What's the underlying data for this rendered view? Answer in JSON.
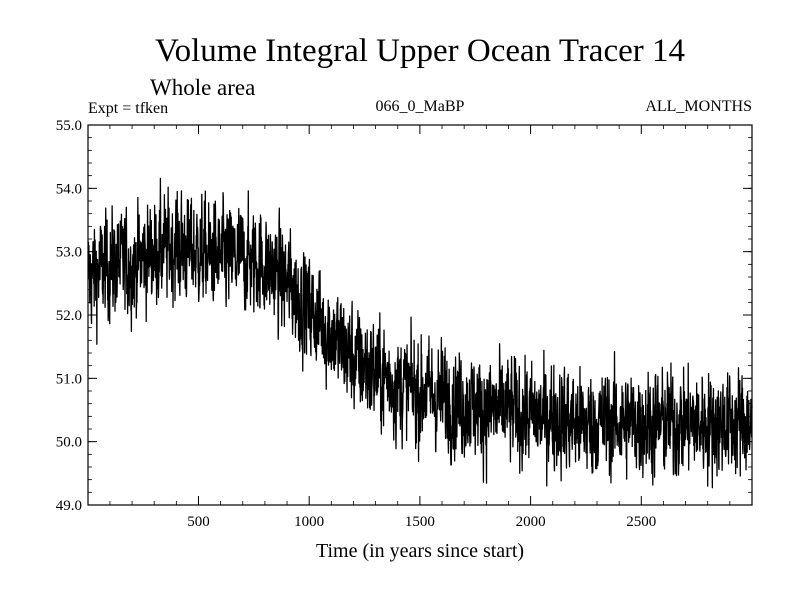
{
  "chart_data": {
    "type": "line",
    "title": "Volume Integral Upper Ocean Tracer 14",
    "subtitle": "Whole area",
    "experiment_label": "Expt = tfken",
    "run_label": "066_0_MaBP",
    "months_label": "ALL_MONTHS",
    "xlabel": "Time (in years since start)",
    "ylabel": "",
    "xlim": [
      1,
      3000
    ],
    "ylim": [
      49.0,
      55.0
    ],
    "xticks": [
      500,
      1000,
      1500,
      2000,
      2500
    ],
    "yticks": [
      "49.0",
      "50.0",
      "51.0",
      "52.0",
      "53.0",
      "54.0",
      "55.0"
    ],
    "grid": false,
    "line_color": "#000000",
    "series_sampling": "approximate trend (mean level) with annual noise amplitude; every year plotted",
    "trend": {
      "x": [
        1,
        100,
        200,
        300,
        400,
        500,
        600,
        700,
        800,
        900,
        1000,
        1100,
        1200,
        1300,
        1400,
        1500,
        1600,
        1700,
        1800,
        1900,
        2000,
        2100,
        2200,
        2300,
        2400,
        2500,
        2600,
        2700,
        2800,
        2900,
        3000
      ],
      "y": [
        52.6,
        52.8,
        52.8,
        53.0,
        53.1,
        53.0,
        52.9,
        52.9,
        52.8,
        52.5,
        52.1,
        51.7,
        51.3,
        51.1,
        50.9,
        50.8,
        50.7,
        50.6,
        50.5,
        50.5,
        50.4,
        50.4,
        50.3,
        50.3,
        50.3,
        50.3,
        50.3,
        50.3,
        50.3,
        50.3,
        50.3
      ]
    },
    "noise_amplitude": 0.38
  }
}
